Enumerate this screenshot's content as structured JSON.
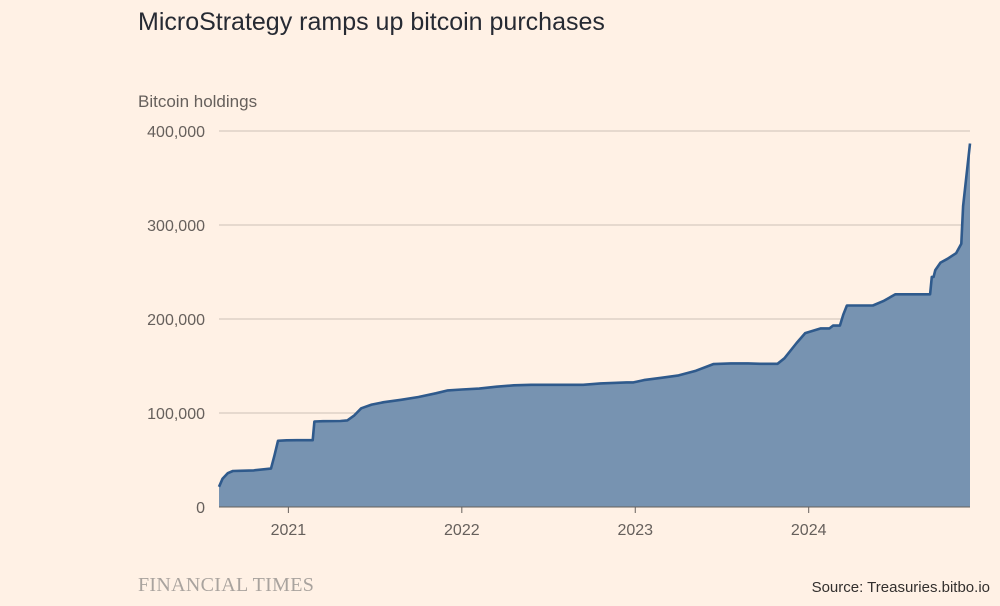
{
  "chart_data": {
    "type": "area",
    "title": "MicroStrategy ramps up bitcoin purchases",
    "ylabel": "Bitcoin holdings",
    "xlabel": "",
    "ylim": [
      0,
      400000
    ],
    "xlim": [
      2020.6,
      2024.93
    ],
    "yticks": [
      0,
      100000,
      200000,
      300000,
      400000
    ],
    "ytick_labels": [
      "0",
      "100,000",
      "200,000",
      "300,000",
      "400,000"
    ],
    "xticks": [
      2021,
      2022,
      2023,
      2024
    ],
    "xtick_labels": [
      "2021",
      "2022",
      "2023",
      "2024"
    ],
    "grid": true,
    "series": [
      {
        "name": "Bitcoin holdings",
        "color": "#2f5a8c",
        "fill": "#7793b1",
        "x": [
          2020.6,
          2020.62,
          2020.65,
          2020.68,
          2020.72,
          2020.8,
          2020.9,
          2020.92,
          2020.94,
          2020.95,
          2020.99,
          2021.05,
          2021.14,
          2021.15,
          2021.2,
          2021.3,
          2021.34,
          2021.38,
          2021.42,
          2021.48,
          2021.55,
          2021.65,
          2021.75,
          2021.85,
          2021.92,
          2022.0,
          2022.1,
          2022.2,
          2022.3,
          2022.4,
          2022.5,
          2022.6,
          2022.7,
          2022.8,
          2022.95,
          2022.99,
          2023.05,
          2023.15,
          2023.25,
          2023.35,
          2023.45,
          2023.55,
          2023.65,
          2023.72,
          2023.82,
          2023.86,
          2023.93,
          2023.98,
          2024.07,
          2024.12,
          2024.14,
          2024.18,
          2024.2,
          2024.22,
          2024.3,
          2024.37,
          2024.43,
          2024.5,
          2024.58,
          2024.63,
          2024.7,
          2024.71,
          2024.72,
          2024.73,
          2024.76,
          2024.8,
          2024.85,
          2024.88,
          2024.89,
          2024.93
        ],
        "y": [
          21500,
          30000,
          36000,
          38250,
          38500,
          38950,
          40800,
          55000,
          70470,
          70500,
          71000,
          71100,
          71100,
          91000,
          91300,
          91500,
          92100,
          97500,
          105000,
          108900,
          111500,
          114000,
          117000,
          121000,
          124000,
          125000,
          126000,
          128000,
          129500,
          130000,
          130000,
          130000,
          130000,
          131500,
          132500,
          132500,
          135000,
          137500,
          140000,
          145000,
          152000,
          152800,
          152800,
          152300,
          152300,
          158200,
          174500,
          185000,
          190000,
          190000,
          193000,
          193000,
          205000,
          214400,
          214400,
          214400,
          219000,
          226300,
          226300,
          226300,
          226300,
          244800,
          244800,
          252000,
          260000,
          264000,
          270000,
          280000,
          320000,
          386700
        ]
      }
    ]
  },
  "footer": {
    "brand": "FINANCIAL TIMES",
    "source": "Source: Treasuries.bitbo.io"
  }
}
